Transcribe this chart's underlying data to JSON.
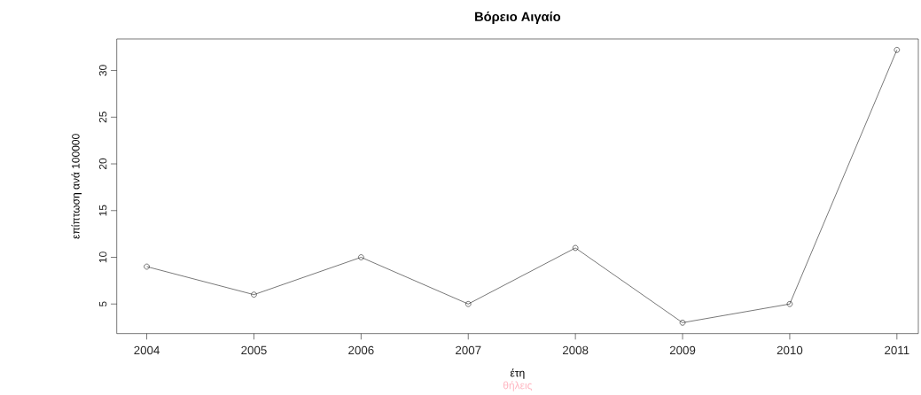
{
  "chart_data": {
    "type": "line",
    "title": "Βόρειο Αιγαίο",
    "subtitle": "θήλεις",
    "xlabel": "έτη",
    "ylabel": "επίπτωση ανά 100000",
    "x": [
      2004,
      2005,
      2006,
      2007,
      2008,
      2009,
      2010,
      2011
    ],
    "series": [
      {
        "color": "#000000",
        "values": [
          9,
          6,
          10,
          5,
          11,
          3,
          5,
          32.2
        ]
      }
    ],
    "xlim": [
      2003.72,
      2011.2
    ],
    "ylim": [
      1.83,
      33.37
    ],
    "xticks": [
      2004,
      2005,
      2006,
      2007,
      2008,
      2009,
      2010,
      2011
    ],
    "yticks": [
      5,
      10,
      15,
      20,
      25,
      30
    ],
    "marker": "circle",
    "line_style": "solid"
  }
}
